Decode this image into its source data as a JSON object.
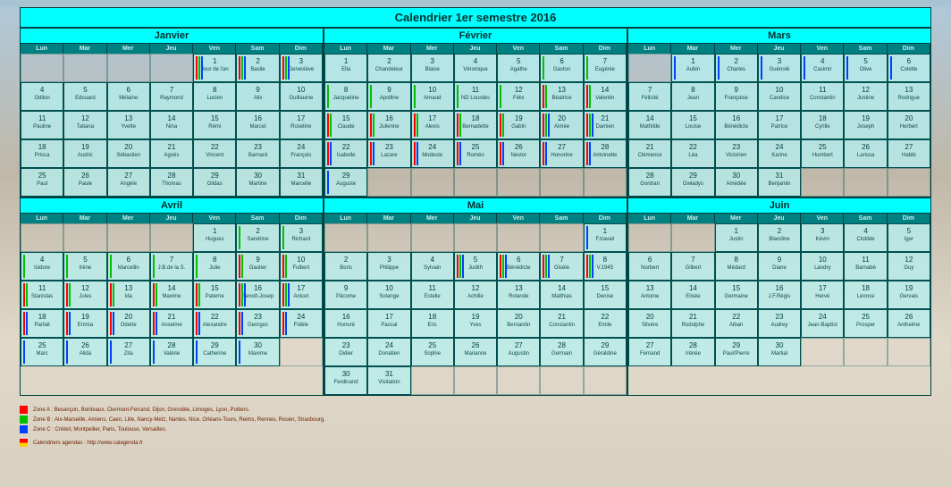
{
  "title": "Calendrier 1er semestre 2016",
  "weekday_labels": [
    "Lun",
    "Mar",
    "Mer",
    "Jeu",
    "Ven",
    "Sam",
    "Dim"
  ],
  "zones": {
    "A": {
      "color": "#ff0000",
      "text": "Zone A : Besançon, Bordeaux, Clermont-Ferrand, Dijon, Grenoble, Limoges, Lyon, Poitiers."
    },
    "B": {
      "color": "#00c000",
      "text": "Zone B : Aix-Marseille, Amiens, Caen, Lille, Nancy-Metz, Nantes, Nice, Orléans-Tours, Reims, Rennes, Rouen, Strasbourg."
    },
    "C": {
      "color": "#0040ff",
      "text": "Zone C : Créteil, Montpellier, Paris, Toulouse, Versailles."
    }
  },
  "credit": "Calendriers agendas : http://www.calagenda.fr",
  "colors": {
    "header_bg": "#00ffff",
    "day_header_bg": "#008080",
    "cell_bg": "rgba(180,240,240,0.75)",
    "border": "#004040"
  },
  "months": [
    {
      "name": "Janvier",
      "lead": 4,
      "weeks": 5,
      "trail": 0,
      "days": [
        {
          "n": 1,
          "s": "Jour de l'an",
          "z": "ABC"
        },
        {
          "n": 2,
          "s": "Basile",
          "z": "ABC"
        },
        {
          "n": 3,
          "s": "Geneviève",
          "z": "ABC"
        },
        {
          "n": 4,
          "s": "Odilon"
        },
        {
          "n": 5,
          "s": "Edouard"
        },
        {
          "n": 6,
          "s": "Mélaine"
        },
        {
          "n": 7,
          "s": "Raymond"
        },
        {
          "n": 8,
          "s": "Lucien"
        },
        {
          "n": 9,
          "s": "Alix"
        },
        {
          "n": 10,
          "s": "Guillaume"
        },
        {
          "n": 11,
          "s": "Pauline"
        },
        {
          "n": 12,
          "s": "Tatiana"
        },
        {
          "n": 13,
          "s": "Yvette"
        },
        {
          "n": 14,
          "s": "Nina"
        },
        {
          "n": 15,
          "s": "Rémi"
        },
        {
          "n": 16,
          "s": "Marcel"
        },
        {
          "n": 17,
          "s": "Roseline"
        },
        {
          "n": 18,
          "s": "Prisca"
        },
        {
          "n": 19,
          "s": "Audric"
        },
        {
          "n": 20,
          "s": "Sébastien"
        },
        {
          "n": 21,
          "s": "Agnès"
        },
        {
          "n": 22,
          "s": "Vincent"
        },
        {
          "n": 23,
          "s": "Barnard"
        },
        {
          "n": 24,
          "s": "François"
        },
        {
          "n": 25,
          "s": "Paul"
        },
        {
          "n": 26,
          "s": "Paule"
        },
        {
          "n": 27,
          "s": "Angèle"
        },
        {
          "n": 28,
          "s": "Thomas"
        },
        {
          "n": 29,
          "s": "Gildas"
        },
        {
          "n": 30,
          "s": "Martine"
        },
        {
          "n": 31,
          "s": "Marcelle"
        }
      ]
    },
    {
      "name": "Février",
      "lead": 0,
      "weeks": 5,
      "trail": 6,
      "days": [
        {
          "n": 1,
          "s": "Ella"
        },
        {
          "n": 2,
          "s": "Chandeleur"
        },
        {
          "n": 3,
          "s": "Blaise"
        },
        {
          "n": 4,
          "s": "Véronique"
        },
        {
          "n": 5,
          "s": "Agathe"
        },
        {
          "n": 6,
          "s": "Gaston",
          "z": "B"
        },
        {
          "n": 7,
          "s": "Eugénie",
          "z": "B"
        },
        {
          "n": 8,
          "s": "Jacqueline",
          "z": "B"
        },
        {
          "n": 9,
          "s": "Apolline",
          "z": "B"
        },
        {
          "n": 10,
          "s": "Arnaud",
          "z": "B"
        },
        {
          "n": 11,
          "s": "ND Lourdes",
          "z": "B"
        },
        {
          "n": 12,
          "s": "Félix",
          "z": "B"
        },
        {
          "n": 13,
          "s": "Béatrice",
          "z": "AB"
        },
        {
          "n": 14,
          "s": "Valentin",
          "z": "AB"
        },
        {
          "n": 15,
          "s": "Claude",
          "z": "AB"
        },
        {
          "n": 16,
          "s": "Julienne",
          "z": "AB"
        },
        {
          "n": 17,
          "s": "Alexis",
          "z": "AB"
        },
        {
          "n": 18,
          "s": "Bernadette",
          "z": "AB"
        },
        {
          "n": 19,
          "s": "Gabin",
          "z": "AB"
        },
        {
          "n": 20,
          "s": "Aimée",
          "z": "ABC"
        },
        {
          "n": 21,
          "s": "Damien",
          "z": "ABC"
        },
        {
          "n": 22,
          "s": "Isabelle",
          "z": "AC"
        },
        {
          "n": 23,
          "s": "Lazare",
          "z": "AC"
        },
        {
          "n": 24,
          "s": "Modeste",
          "z": "AC"
        },
        {
          "n": 25,
          "s": "Roméo",
          "z": "AC"
        },
        {
          "n": 26,
          "s": "Nestor",
          "z": "AC"
        },
        {
          "n": 27,
          "s": "Honorine",
          "z": "AC"
        },
        {
          "n": 28,
          "s": "Antoinette",
          "z": "AC"
        },
        {
          "n": 29,
          "s": "Auguste",
          "z": "C"
        }
      ]
    },
    {
      "name": "Mars",
      "lead": 1,
      "weeks": 5,
      "trail": 3,
      "days": [
        {
          "n": 1,
          "s": "Aubin",
          "z": "C"
        },
        {
          "n": 2,
          "s": "Charles",
          "z": "C"
        },
        {
          "n": 3,
          "s": "Guénolé",
          "z": "C"
        },
        {
          "n": 4,
          "s": "Casimir",
          "z": "C"
        },
        {
          "n": 5,
          "s": "Olive",
          "z": "C"
        },
        {
          "n": 6,
          "s": "Colette",
          "z": "C"
        },
        {
          "n": 7,
          "s": "Félicité"
        },
        {
          "n": 8,
          "s": "Jean"
        },
        {
          "n": 9,
          "s": "Françoise"
        },
        {
          "n": 10,
          "s": "Candice"
        },
        {
          "n": 11,
          "s": "Constantin"
        },
        {
          "n": 12,
          "s": "Justine"
        },
        {
          "n": 13,
          "s": "Rodrigue"
        },
        {
          "n": 14,
          "s": "Mathilde"
        },
        {
          "n": 15,
          "s": "Louise"
        },
        {
          "n": 16,
          "s": "Bénédicte"
        },
        {
          "n": 17,
          "s": "Patrice"
        },
        {
          "n": 18,
          "s": "Cyrille"
        },
        {
          "n": 19,
          "s": "Joseph"
        },
        {
          "n": 20,
          "s": "Herbert"
        },
        {
          "n": 21,
          "s": "Clémence"
        },
        {
          "n": 22,
          "s": "Léa"
        },
        {
          "n": 23,
          "s": "Victorien"
        },
        {
          "n": 24,
          "s": "Karine"
        },
        {
          "n": 25,
          "s": "Humbert"
        },
        {
          "n": 26,
          "s": "Larissa"
        },
        {
          "n": 27,
          "s": "Habib"
        },
        {
          "n": 28,
          "s": "Gontran"
        },
        {
          "n": 29,
          "s": "Gwladys"
        },
        {
          "n": 30,
          "s": "Amédée"
        },
        {
          "n": 31,
          "s": "Benjamin"
        }
      ]
    },
    {
      "name": "Avril",
      "lead": 4,
      "weeks": 5,
      "trail": 1,
      "days": [
        {
          "n": 1,
          "s": "Hugues"
        },
        {
          "n": 2,
          "s": "Sandrine",
          "z": "B"
        },
        {
          "n": 3,
          "s": "Richard",
          "z": "B"
        },
        {
          "n": 4,
          "s": "Isidore",
          "z": "B"
        },
        {
          "n": 5,
          "s": "Irène",
          "z": "B"
        },
        {
          "n": 6,
          "s": "Marcellin",
          "z": "B"
        },
        {
          "n": 7,
          "s": "J.B.de la S.",
          "z": "B"
        },
        {
          "n": 8,
          "s": "Julie",
          "z": "B"
        },
        {
          "n": 9,
          "s": "Gautier",
          "z": "AB"
        },
        {
          "n": 10,
          "s": "Fulbert",
          "z": "AB"
        },
        {
          "n": 11,
          "s": "Stanislas",
          "z": "AB"
        },
        {
          "n": 12,
          "s": "Jules",
          "z": "AB"
        },
        {
          "n": 13,
          "s": "Ida",
          "z": "AB"
        },
        {
          "n": 14,
          "s": "Maxime",
          "z": "AB"
        },
        {
          "n": 15,
          "s": "Paterne",
          "z": "AB"
        },
        {
          "n": 16,
          "s": "Benoît-Josep",
          "z": "ABC"
        },
        {
          "n": 17,
          "s": "Anicet",
          "z": "ABC"
        },
        {
          "n": 18,
          "s": "Parfait",
          "z": "AC"
        },
        {
          "n": 19,
          "s": "Emma",
          "z": "AC"
        },
        {
          "n": 20,
          "s": "Odette",
          "z": "AC"
        },
        {
          "n": 21,
          "s": "Anselme",
          "z": "AC"
        },
        {
          "n": 22,
          "s": "Alexandre",
          "z": "AC"
        },
        {
          "n": 23,
          "s": "Georges",
          "z": "AC"
        },
        {
          "n": 24,
          "s": "Fidèle",
          "z": "AC"
        },
        {
          "n": 25,
          "s": "Marc",
          "z": "C"
        },
        {
          "n": 26,
          "s": "Alida",
          "z": "C"
        },
        {
          "n": 27,
          "s": "Zita",
          "z": "C"
        },
        {
          "n": 28,
          "s": "Valérie",
          "z": "C"
        },
        {
          "n": 29,
          "s": "Catherine",
          "z": "C"
        },
        {
          "n": 30,
          "s": "Maxime",
          "z": "C"
        }
      ]
    },
    {
      "name": "Mai",
      "lead": 6,
      "weeks": 6,
      "trail": 5,
      "days": [
        {
          "n": 1,
          "s": "F.travail",
          "z": "C"
        },
        {
          "n": 2,
          "s": "Boris"
        },
        {
          "n": 3,
          "s": "Philippe"
        },
        {
          "n": 4,
          "s": "Sylvain"
        },
        {
          "n": 5,
          "s": "Judith",
          "z": "ABC"
        },
        {
          "n": 6,
          "s": "Bénédicte",
          "z": "ABC"
        },
        {
          "n": 7,
          "s": "Gisèle",
          "z": "ABC"
        },
        {
          "n": 8,
          "s": "V.1945",
          "z": "ABC"
        },
        {
          "n": 9,
          "s": "Pâcome"
        },
        {
          "n": 10,
          "s": "Solange"
        },
        {
          "n": 11,
          "s": "Estelle"
        },
        {
          "n": 12,
          "s": "Achille"
        },
        {
          "n": 13,
          "s": "Rolande"
        },
        {
          "n": 14,
          "s": "Matthias"
        },
        {
          "n": 15,
          "s": "Denise"
        },
        {
          "n": 16,
          "s": "Honoré"
        },
        {
          "n": 17,
          "s": "Pascal"
        },
        {
          "n": 18,
          "s": "Eric"
        },
        {
          "n": 19,
          "s": "Yves"
        },
        {
          "n": 20,
          "s": "Bernardin"
        },
        {
          "n": 21,
          "s": "Constantin"
        },
        {
          "n": 22,
          "s": "Emile"
        },
        {
          "n": 23,
          "s": "Didier"
        },
        {
          "n": 24,
          "s": "Donatien"
        },
        {
          "n": 25,
          "s": "Sophie"
        },
        {
          "n": 26,
          "s": "Marianne"
        },
        {
          "n": 27,
          "s": "Augustin"
        },
        {
          "n": 28,
          "s": "Germain"
        },
        {
          "n": 29,
          "s": "Géraldine"
        },
        {
          "n": 30,
          "s": "Ferdinand"
        },
        {
          "n": 31,
          "s": "Visitation"
        }
      ]
    },
    {
      "name": "Juin",
      "lead": 2,
      "weeks": 5,
      "trail": 3,
      "days": [
        {
          "n": 1,
          "s": "Justin"
        },
        {
          "n": 2,
          "s": "Blandine"
        },
        {
          "n": 3,
          "s": "Kévin"
        },
        {
          "n": 4,
          "s": "Clotilde"
        },
        {
          "n": 5,
          "s": "Igor"
        },
        {
          "n": 6,
          "s": "Norbert"
        },
        {
          "n": 7,
          "s": "Gilbert"
        },
        {
          "n": 8,
          "s": "Médard"
        },
        {
          "n": 9,
          "s": "Diane"
        },
        {
          "n": 10,
          "s": "Landry"
        },
        {
          "n": 11,
          "s": "Barnabé"
        },
        {
          "n": 12,
          "s": "Guy"
        },
        {
          "n": 13,
          "s": "Antoine"
        },
        {
          "n": 14,
          "s": "Elisée"
        },
        {
          "n": 15,
          "s": "Germaine"
        },
        {
          "n": 16,
          "s": "J.F.Régis"
        },
        {
          "n": 17,
          "s": "Hervé"
        },
        {
          "n": 18,
          "s": "Léonce"
        },
        {
          "n": 19,
          "s": "Gervais"
        },
        {
          "n": 20,
          "s": "Silvère"
        },
        {
          "n": 21,
          "s": "Rodolphe"
        },
        {
          "n": 22,
          "s": "Alban"
        },
        {
          "n": 23,
          "s": "Audrey"
        },
        {
          "n": 24,
          "s": "Jean-Baptist"
        },
        {
          "n": 25,
          "s": "Prosper"
        },
        {
          "n": 26,
          "s": "Anthelme"
        },
        {
          "n": 27,
          "s": "Fernand"
        },
        {
          "n": 28,
          "s": "Irénée"
        },
        {
          "n": 29,
          "s": "Paul/Pierre"
        },
        {
          "n": 30,
          "s": "Martial"
        }
      ]
    }
  ]
}
